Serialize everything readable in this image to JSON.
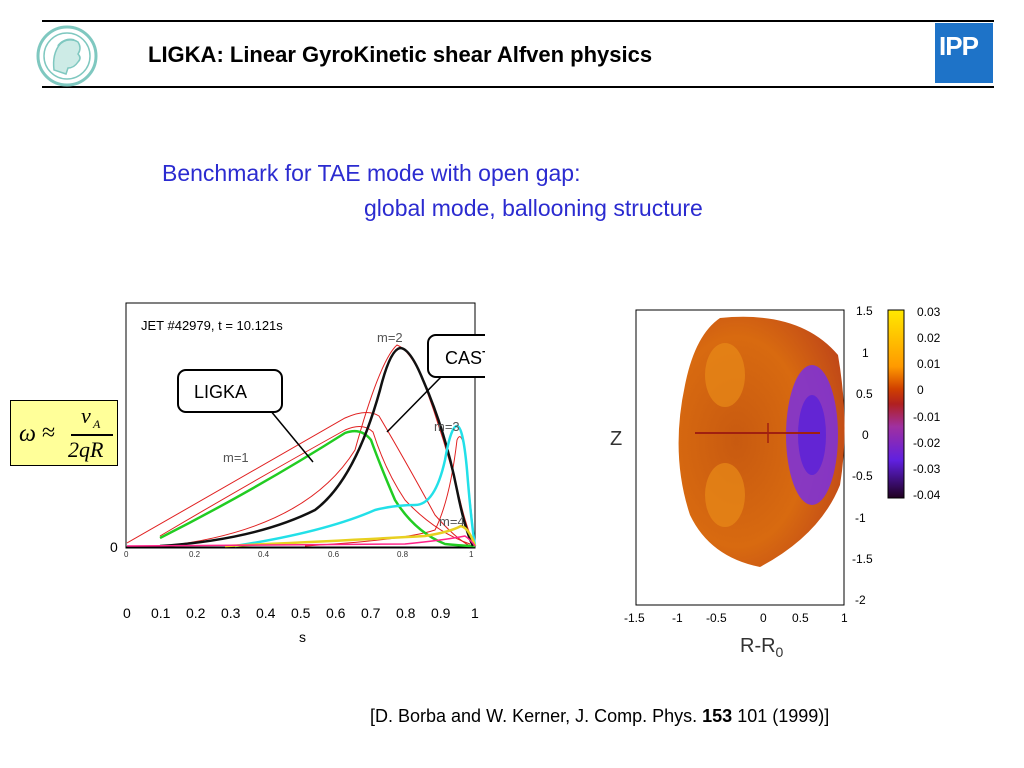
{
  "header": {
    "title": "LIGKA: Linear GyroKinetic  shear Alfven physics",
    "logo_left_icon": "mpg-minerva-logo-icon",
    "logo_right_text": "IPP",
    "colors": {
      "rule": "#000000",
      "ipp_blue": "#1e73c8",
      "subtitle": "#2b2bd0"
    }
  },
  "subtitle": {
    "line1": "Benchmark for TAE mode with open gap:",
    "line2": "global mode, ballooning structure"
  },
  "formula": {
    "omega": "ω",
    "approx": "≈",
    "numerator": "v",
    "numerator_sub": "A",
    "denominator": "2qR"
  },
  "plot_left": {
    "inset_label": "JET #42979, t = 10.121s",
    "callout_ligka": "LIGKA",
    "callout_castor": "CASTOR",
    "mode_labels": [
      "m=1",
      "m=2",
      "m=3",
      "m=4"
    ],
    "y_zero_label": "0",
    "xlabel": "s",
    "x_ticks": [
      "0",
      "0.1",
      "0.2",
      "0.3",
      "0.4",
      "0.5",
      "0.6",
      "0.7",
      "0.8",
      "0.9",
      "1"
    ],
    "inner_ticks": [
      "0",
      "0.2",
      "0.4",
      "0.6",
      "0.8",
      "1"
    ]
  },
  "plot_right": {
    "ylabel": "Z",
    "xlabel_main": "R-R",
    "xlabel_sub": "0",
    "x_ticks": [
      "-1.5",
      "-1",
      "-0.5",
      "0",
      "0.5",
      "1"
    ],
    "y_ticks": [
      "1.5",
      "1",
      "0.5",
      "0",
      "-0.5",
      "-1",
      "-1.5",
      "-2"
    ],
    "colorbar_ticks": [
      "0.03",
      "0.02",
      "0.01",
      "0",
      "-0.01",
      "-0.02",
      "-0.03",
      "-0.04"
    ]
  },
  "citation": {
    "prefix": "[D. Borba and W. Kerner, J. Comp. Phys.  ",
    "volume": "153",
    "suffix": " 101 (1999)]"
  }
}
